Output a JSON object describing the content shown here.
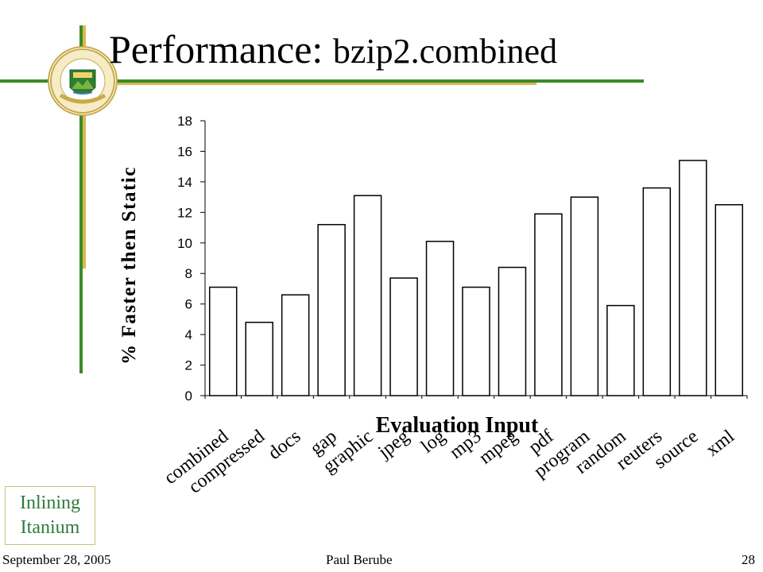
{
  "slide": {
    "title_main": "Performance: ",
    "title_sub": "bzip2.combined",
    "footer_date": "September 28, 2005",
    "footer_author": "Paul Berube",
    "page_number": "28",
    "tag_line1": "Inlining",
    "tag_line2": "Itanium"
  },
  "colors": {
    "accent_green": "#3c8a2a",
    "accent_gold": "#d8b94f",
    "tag_text": "#2f7a3b"
  },
  "logo": {
    "name": "university-of-alberta-crest"
  },
  "chart_data": {
    "type": "bar",
    "title": "",
    "xlabel": "Evaluation Input",
    "ylabel": "% Faster then Static",
    "ylim": [
      0,
      18
    ],
    "yticks": [
      0,
      2,
      4,
      6,
      8,
      10,
      12,
      14,
      16,
      18
    ],
    "categories": [
      "combined",
      "compressed",
      "docs",
      "gap",
      "graphic",
      "jpeg",
      "log",
      "mp3",
      "mpeg",
      "pdf",
      "program",
      "random",
      "reuters",
      "source",
      "xml"
    ],
    "values": [
      7.1,
      4.8,
      6.6,
      11.2,
      13.1,
      7.7,
      10.1,
      7.1,
      8.4,
      11.9,
      13.0,
      5.9,
      13.6,
      15.4,
      12.5
    ],
    "grid": false,
    "legend": "none"
  }
}
